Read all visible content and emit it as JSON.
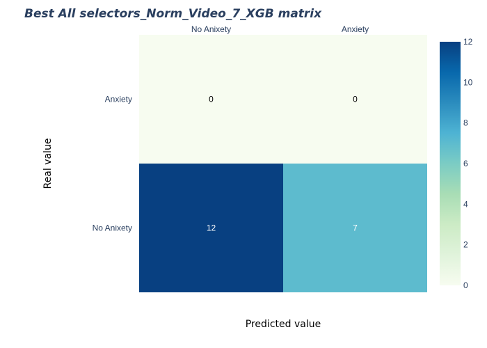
{
  "chart_data": {
    "type": "heatmap",
    "title": "Best All selectors_Norm_Video_7_XGB matrix",
    "xlabel": "Predicted value",
    "ylabel": "Real value",
    "x_categories": [
      "No Anixety",
      "Anxiety"
    ],
    "y_categories": [
      "No Anixety",
      "Anxiety"
    ],
    "z": [
      [
        12,
        7
      ],
      [
        0,
        0
      ]
    ],
    "zlim": [
      0,
      12
    ],
    "colorscale": "GnBu",
    "colorbar_ticks": [
      "0",
      "2",
      "4",
      "6",
      "8",
      "10",
      "12"
    ],
    "x_axis_side": "top",
    "colorbar_placement": "right",
    "grid": false
  }
}
